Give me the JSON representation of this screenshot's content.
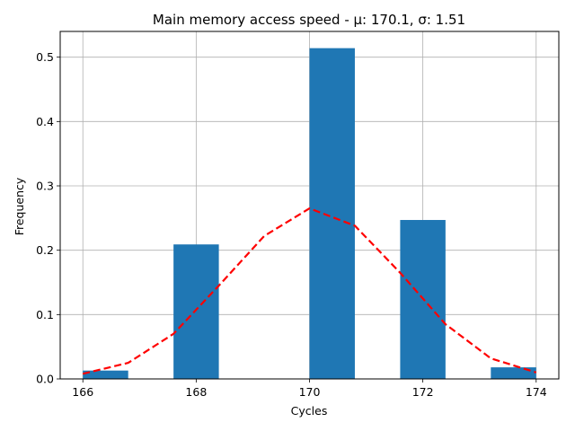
{
  "chart_data": {
    "type": "bar",
    "title": "Main memory access speed - μ: 170.1, σ: 1.51",
    "xlabel": "Cycles",
    "ylabel": "Frequency",
    "xlim": [
      165.6,
      174.4
    ],
    "ylim": [
      0,
      0.54
    ],
    "xticks": [
      166,
      168,
      170,
      172,
      174
    ],
    "yticks": [
      0.0,
      0.1,
      0.2,
      0.3,
      0.4,
      0.5
    ],
    "grid": true,
    "bar_width": 0.8,
    "bar_color": "#1f77b4",
    "bins": [
      {
        "x_start": 166.0,
        "value": 0.013
      },
      {
        "x_start": 166.8,
        "value": 0.0
      },
      {
        "x_start": 167.6,
        "value": 0.209
      },
      {
        "x_start": 168.4,
        "value": 0.0
      },
      {
        "x_start": 169.2,
        "value": 0.0
      },
      {
        "x_start": 170.0,
        "value": 0.514
      },
      {
        "x_start": 170.8,
        "value": 0.0
      },
      {
        "x_start": 171.6,
        "value": 0.247
      },
      {
        "x_start": 172.4,
        "value": 0.0
      },
      {
        "x_start": 173.2,
        "value": 0.018
      }
    ],
    "fit_curve": {
      "color": "#ff0000",
      "style": "dashed",
      "x": [
        166.0,
        166.8,
        167.6,
        168.4,
        169.2,
        170.0,
        170.8,
        171.6,
        172.4,
        173.2,
        174.0
      ],
      "y": [
        0.008,
        0.025,
        0.07,
        0.145,
        0.222,
        0.265,
        0.238,
        0.165,
        0.085,
        0.032,
        0.01
      ]
    }
  }
}
